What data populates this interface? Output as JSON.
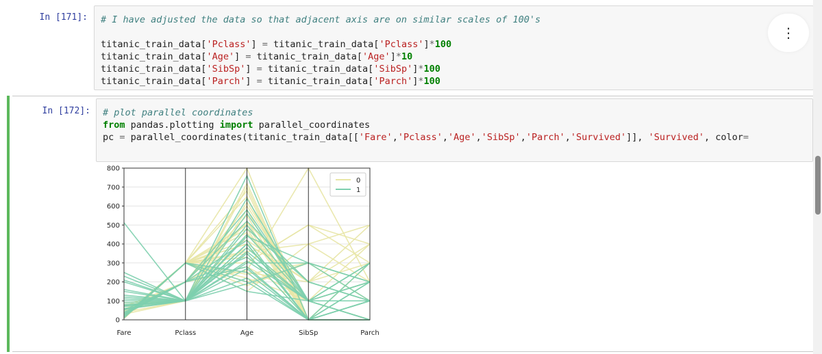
{
  "cells": [
    {
      "prompt": "In [171]:",
      "lines": [
        [
          {
            "t": "# I have adjusted the data so that adjacent axis are on similar scales of 100's",
            "c": "cm"
          }
        ],
        [],
        [
          {
            "t": "titanic_train_data[",
            "c": ""
          },
          {
            "t": "'Pclass'",
            "c": "st"
          },
          {
            "t": "] ",
            "c": ""
          },
          {
            "t": "=",
            "c": "op"
          },
          {
            "t": " titanic_train_data[",
            "c": ""
          },
          {
            "t": "'Pclass'",
            "c": "st"
          },
          {
            "t": "]",
            "c": ""
          },
          {
            "t": "*",
            "c": "op"
          },
          {
            "t": "100",
            "c": "kw"
          }
        ],
        [
          {
            "t": "titanic_train_data[",
            "c": ""
          },
          {
            "t": "'Age'",
            "c": "st"
          },
          {
            "t": "] ",
            "c": ""
          },
          {
            "t": "=",
            "c": "op"
          },
          {
            "t": " titanic_train_data[",
            "c": ""
          },
          {
            "t": "'Age'",
            "c": "st"
          },
          {
            "t": "]",
            "c": ""
          },
          {
            "t": "*",
            "c": "op"
          },
          {
            "t": "10",
            "c": "kw"
          }
        ],
        [
          {
            "t": "titanic_train_data[",
            "c": ""
          },
          {
            "t": "'SibSp'",
            "c": "st"
          },
          {
            "t": "] ",
            "c": ""
          },
          {
            "t": "=",
            "c": "op"
          },
          {
            "t": " titanic_train_data[",
            "c": ""
          },
          {
            "t": "'SibSp'",
            "c": "st"
          },
          {
            "t": "]",
            "c": ""
          },
          {
            "t": "*",
            "c": "op"
          },
          {
            "t": "100",
            "c": "kw"
          }
        ],
        [
          {
            "t": "titanic_train_data[",
            "c": ""
          },
          {
            "t": "'Parch'",
            "c": "st"
          },
          {
            "t": "] ",
            "c": ""
          },
          {
            "t": "=",
            "c": "op"
          },
          {
            "t": " titanic_train_data[",
            "c": ""
          },
          {
            "t": "'Parch'",
            "c": "st"
          },
          {
            "t": "]",
            "c": ""
          },
          {
            "t": "*",
            "c": "op"
          },
          {
            "t": "100",
            "c": "kw"
          }
        ]
      ]
    },
    {
      "prompt": "In [172]:",
      "lines": [
        [
          {
            "t": "# plot parallel coordinates",
            "c": "cm"
          }
        ],
        [
          {
            "t": "from",
            "c": "kw"
          },
          {
            "t": " pandas.plotting ",
            "c": ""
          },
          {
            "t": "import",
            "c": "kw"
          },
          {
            "t": " parallel_coordinates",
            "c": ""
          }
        ],
        [
          {
            "t": "pc ",
            "c": ""
          },
          {
            "t": "=",
            "c": "op"
          },
          {
            "t": " parallel_coordinates(titanic_train_data[[",
            "c": ""
          },
          {
            "t": "'Fare'",
            "c": "st"
          },
          {
            "t": ",",
            "c": ""
          },
          {
            "t": "'Pclass'",
            "c": "st"
          },
          {
            "t": ",",
            "c": ""
          },
          {
            "t": "'Age'",
            "c": "st"
          },
          {
            "t": ",",
            "c": ""
          },
          {
            "t": "'SibSp'",
            "c": "st"
          },
          {
            "t": ",",
            "c": ""
          },
          {
            "t": "'Parch'",
            "c": "st"
          },
          {
            "t": ",",
            "c": ""
          },
          {
            "t": "'Survived'",
            "c": "st"
          },
          {
            "t": "]], ",
            "c": ""
          },
          {
            "t": "'Survived'",
            "c": "st"
          },
          {
            "t": ", color",
            "c": ""
          },
          {
            "t": "=",
            "c": "op"
          }
        ]
      ]
    }
  ],
  "menu_icon": "more-vertical-icon",
  "menu_glyph": "⋮",
  "colors": {
    "survived_0": "#e8e6a6",
    "survived_1": "#7dcfae",
    "prompt": "#303f9f",
    "cell_active_border": "#5cb85c"
  },
  "chart_data": {
    "type": "parallel_coordinates",
    "axes": [
      "Fare",
      "Pclass",
      "Age",
      "SibSp",
      "Parch"
    ],
    "yticks": [
      0,
      100,
      200,
      300,
      400,
      500,
      600,
      700,
      800
    ],
    "ylim": [
      0,
      800
    ],
    "legend": {
      "entries": [
        "0",
        "1"
      ],
      "placement": "top-right"
    },
    "series": [
      {
        "name": "0",
        "lines": [
          [
            10,
            300,
            220,
            100,
            0
          ],
          [
            8,
            300,
            350,
            0,
            0
          ],
          [
            26,
            300,
            500,
            0,
            100
          ],
          [
            50,
            200,
            600,
            100,
            200
          ],
          [
            15,
            300,
            180,
            300,
            100
          ],
          [
            30,
            100,
            700,
            0,
            0
          ],
          [
            7,
            300,
            400,
            0,
            0
          ],
          [
            70,
            200,
            280,
            100,
            100
          ],
          [
            20,
            300,
            650,
            0,
            300
          ],
          [
            12,
            300,
            150,
            400,
            200
          ],
          [
            40,
            100,
            450,
            100,
            0
          ],
          [
            9,
            300,
            300,
            500,
            400
          ],
          [
            55,
            200,
            550,
            0,
            100
          ],
          [
            25,
            300,
            250,
            200,
            500
          ],
          [
            80,
            100,
            620,
            100,
            0
          ],
          [
            14,
            300,
            480,
            0,
            0
          ],
          [
            35,
            200,
            380,
            100,
            200
          ],
          [
            60,
            100,
            720,
            0,
            300
          ],
          [
            11,
            300,
            200,
            300,
            100
          ],
          [
            45,
            200,
            520,
            0,
            0
          ],
          [
            18,
            300,
            330,
            100,
            400
          ],
          [
            90,
            100,
            580,
            0,
            200
          ],
          [
            22,
            300,
            420,
            200,
            100
          ],
          [
            7,
            300,
            680,
            0,
            0
          ],
          [
            16,
            300,
            800,
            0,
            0
          ],
          [
            28,
            200,
            260,
            800,
            200
          ],
          [
            13,
            300,
            300,
            500,
            300
          ],
          [
            17,
            300,
            360,
            400,
            500
          ],
          [
            21,
            300,
            240,
            300,
            200
          ],
          [
            19,
            300,
            460,
            100,
            300
          ],
          [
            24,
            200,
            510,
            200,
            400
          ],
          [
            9,
            300,
            400,
            200,
            300
          ]
        ]
      },
      {
        "name": "1",
        "lines": [
          [
            512,
            100,
            350,
            0,
            100
          ],
          [
            250,
            100,
            190,
            300,
            200
          ],
          [
            230,
            100,
            640,
            100,
            0
          ],
          [
            150,
            100,
            500,
            100,
            100
          ],
          [
            30,
            200,
            280,
            0,
            200
          ],
          [
            80,
            100,
            380,
            100,
            0
          ],
          [
            60,
            100,
            220,
            0,
            100
          ],
          [
            120,
            100,
            450,
            100,
            300
          ],
          [
            10,
            300,
            250,
            0,
            0
          ],
          [
            40,
            200,
            580,
            100,
            100
          ],
          [
            200,
            100,
            300,
            300,
            200
          ],
          [
            90,
            100,
            400,
            0,
            0
          ],
          [
            26,
            200,
            520,
            200,
            100
          ],
          [
            110,
            100,
            310,
            100,
            200
          ],
          [
            70,
            100,
            760,
            0,
            0
          ],
          [
            15,
            300,
            150,
            100,
            100
          ],
          [
            50,
            200,
            420,
            0,
            300
          ],
          [
            160,
            100,
            360,
            100,
            0
          ],
          [
            20,
            300,
            200,
            0,
            100
          ],
          [
            100,
            100,
            480,
            200,
            100
          ],
          [
            35,
            200,
            330,
            100,
            200
          ],
          [
            210,
            100,
            560,
            100,
            300
          ],
          [
            55,
            100,
            270,
            0,
            100
          ],
          [
            130,
            100,
            440,
            300,
            100
          ],
          [
            75,
            100,
            400,
            0,
            200
          ]
        ]
      }
    ]
  }
}
